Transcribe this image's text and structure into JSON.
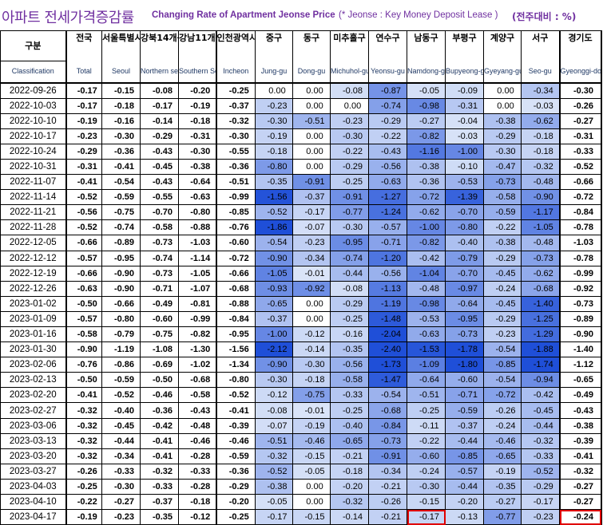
{
  "title": {
    "korean": "아파트 전세가격증감률",
    "english": "Changing Rate of Apartment Jeonse Price",
    "note": "(* Jeonse : Key Money Deposit Lease )",
    "unit": "(전주대비 : %)"
  },
  "columns": [
    {
      "ko": "구분",
      "en": "Classification"
    },
    {
      "ko": "전국",
      "en": "Total"
    },
    {
      "ko": "서울특별시",
      "en": "Seoul"
    },
    {
      "ko": "강북14개구",
      "en": "Northern seoul"
    },
    {
      "ko": "강남11개구",
      "en": "Southern Seoul"
    },
    {
      "ko": "인천광역시",
      "en": "Incheon"
    },
    {
      "ko": "중구",
      "en": "Jung-gu"
    },
    {
      "ko": "동구",
      "en": "Dong-gu"
    },
    {
      "ko": "미추홀구",
      "en": "Michuhol-gu"
    },
    {
      "ko": "연수구",
      "en": "Yeonsu-gu"
    },
    {
      "ko": "남동구",
      "en": "Namdong-gu"
    },
    {
      "ko": "부평구",
      "en": "Bupyeong-gu"
    },
    {
      "ko": "계양구",
      "en": "Gyeyang-gu"
    },
    {
      "ko": "서구",
      "en": "Seo-gu"
    },
    {
      "ko": "경기도",
      "en": "Gyeonggi-do"
    }
  ],
  "rows": [
    {
      "date": "2022-09-26",
      "v": [
        "-0.17",
        "-0.15",
        "-0.08",
        "-0.20",
        "-0.25",
        "0.00",
        "0.00",
        "-0.08",
        "-0.87",
        "-0.05",
        "-0.09",
        "0.00",
        "-0.34",
        "-0.30"
      ]
    },
    {
      "date": "2022-10-03",
      "v": [
        "-0.17",
        "-0.18",
        "-0.17",
        "-0.19",
        "-0.37",
        "-0.23",
        "0.00",
        "0.00",
        "-0.74",
        "-0.98",
        "-0.31",
        "0.00",
        "-0.03",
        "-0.26"
      ]
    },
    {
      "date": "2022-10-10",
      "v": [
        "-0.19",
        "-0.16",
        "-0.14",
        "-0.18",
        "-0.32",
        "-0.30",
        "-0.51",
        "-0.23",
        "-0.29",
        "-0.27",
        "-0.04",
        "-0.38",
        "-0.62",
        "-0.27"
      ]
    },
    {
      "date": "2022-10-17",
      "v": [
        "-0.23",
        "-0.30",
        "-0.29",
        "-0.31",
        "-0.30",
        "-0.19",
        "0.00",
        "-0.30",
        "-0.22",
        "-0.82",
        "-0.03",
        "-0.29",
        "-0.18",
        "-0.31"
      ]
    },
    {
      "date": "2022-10-24",
      "v": [
        "-0.29",
        "-0.36",
        "-0.43",
        "-0.30",
        "-0.55",
        "-0.18",
        "0.00",
        "-0.22",
        "-0.43",
        "-1.16",
        "-1.00",
        "-0.30",
        "-0.18",
        "-0.33"
      ]
    },
    {
      "date": "2022-10-31",
      "v": [
        "-0.31",
        "-0.41",
        "-0.45",
        "-0.38",
        "-0.36",
        "-0.80",
        "0.00",
        "-0.29",
        "-0.56",
        "-0.38",
        "-0.10",
        "-0.47",
        "-0.32",
        "-0.52"
      ]
    },
    {
      "date": "2022-11-07",
      "v": [
        "-0.41",
        "-0.54",
        "-0.43",
        "-0.64",
        "-0.51",
        "-0.35",
        "-0.91",
        "-0.25",
        "-0.63",
        "-0.36",
        "-0.53",
        "-0.73",
        "-0.48",
        "-0.66"
      ]
    },
    {
      "date": "2022-11-14",
      "v": [
        "-0.52",
        "-0.59",
        "-0.55",
        "-0.63",
        "-0.99",
        "-1.56",
        "-0.37",
        "-0.91",
        "-1.27",
        "-0.72",
        "-1.39",
        "-0.58",
        "-0.90",
        "-0.72"
      ]
    },
    {
      "date": "2022-11-21",
      "v": [
        "-0.56",
        "-0.75",
        "-0.70",
        "-0.80",
        "-0.85",
        "-0.52",
        "-0.17",
        "-0.77",
        "-1.24",
        "-0.62",
        "-0.70",
        "-0.59",
        "-1.17",
        "-0.84"
      ]
    },
    {
      "date": "2022-11-28",
      "v": [
        "-0.52",
        "-0.74",
        "-0.58",
        "-0.88",
        "-0.76",
        "-1.86",
        "-0.07",
        "-0.30",
        "-0.57",
        "-1.00",
        "-0.80",
        "-0.22",
        "-1.05",
        "-0.78"
      ]
    },
    {
      "date": "2022-12-05",
      "v": [
        "-0.66",
        "-0.89",
        "-0.73",
        "-1.03",
        "-0.60",
        "-0.54",
        "-0.23",
        "-0.95",
        "-0.71",
        "-0.82",
        "-0.40",
        "-0.38",
        "-0.48",
        "-1.03"
      ]
    },
    {
      "date": "2022-12-12",
      "v": [
        "-0.57",
        "-0.95",
        "-0.74",
        "-1.14",
        "-0.72",
        "-0.90",
        "-0.34",
        "-0.74",
        "-1.20",
        "-0.42",
        "-0.79",
        "-0.29",
        "-0.73",
        "-0.78"
      ]
    },
    {
      "date": "2022-12-19",
      "v": [
        "-0.66",
        "-0.90",
        "-0.73",
        "-1.05",
        "-0.66",
        "-1.05",
        "-0.01",
        "-0.44",
        "-0.56",
        "-1.04",
        "-0.70",
        "-0.45",
        "-0.62",
        "-0.99"
      ]
    },
    {
      "date": "2022-12-26",
      "v": [
        "-0.63",
        "-0.90",
        "-0.71",
        "-1.07",
        "-0.68",
        "-0.93",
        "-0.92",
        "-0.08",
        "-1.13",
        "-0.48",
        "-0.97",
        "-0.24",
        "-0.68",
        "-0.92"
      ]
    },
    {
      "date": "2023-01-02",
      "v": [
        "-0.50",
        "-0.66",
        "-0.49",
        "-0.81",
        "-0.88",
        "-0.65",
        "0.00",
        "-0.29",
        "-1.19",
        "-0.98",
        "-0.64",
        "-0.45",
        "-1.40",
        "-0.73"
      ]
    },
    {
      "date": "2023-01-09",
      "v": [
        "-0.57",
        "-0.80",
        "-0.60",
        "-0.99",
        "-0.84",
        "-0.37",
        "0.00",
        "-0.25",
        "-1.48",
        "-0.53",
        "-0.95",
        "-0.29",
        "-1.25",
        "-0.89"
      ]
    },
    {
      "date": "2023-01-16",
      "v": [
        "-0.58",
        "-0.79",
        "-0.75",
        "-0.82",
        "-0.95",
        "-1.00",
        "-0.12",
        "-0.16",
        "-2.04",
        "-0.63",
        "-0.73",
        "-0.23",
        "-1.29",
        "-0.90"
      ]
    },
    {
      "date": "2023-01-30",
      "v": [
        "-0.90",
        "-1.19",
        "-1.08",
        "-1.30",
        "-1.56",
        "-2.12",
        "-0.14",
        "-0.35",
        "-2.40",
        "-1.53",
        "-1.78",
        "-0.54",
        "-1.88",
        "-1.40"
      ]
    },
    {
      "date": "2023-02-06",
      "v": [
        "-0.76",
        "-0.86",
        "-0.69",
        "-1.02",
        "-1.34",
        "-0.90",
        "-0.30",
        "-0.56",
        "-1.73",
        "-1.09",
        "-1.80",
        "-0.85",
        "-1.74",
        "-1.12"
      ]
    },
    {
      "date": "2023-02-13",
      "v": [
        "-0.50",
        "-0.59",
        "-0.50",
        "-0.68",
        "-0.80",
        "-0.30",
        "-0.18",
        "-0.58",
        "-1.47",
        "-0.64",
        "-0.60",
        "-0.54",
        "-0.94",
        "-0.65"
      ]
    },
    {
      "date": "2023-02-20",
      "v": [
        "-0.41",
        "-0.52",
        "-0.46",
        "-0.58",
        "-0.52",
        "-0.12",
        "-0.75",
        "-0.33",
        "-0.54",
        "-0.51",
        "-0.71",
        "-0.72",
        "-0.42",
        "-0.49"
      ]
    },
    {
      "date": "2023-02-27",
      "v": [
        "-0.32",
        "-0.40",
        "-0.36",
        "-0.43",
        "-0.41",
        "-0.08",
        "-0.01",
        "-0.25",
        "-0.68",
        "-0.25",
        "-0.59",
        "-0.26",
        "-0.45",
        "-0.43"
      ]
    },
    {
      "date": "2023-03-06",
      "v": [
        "-0.32",
        "-0.45",
        "-0.42",
        "-0.48",
        "-0.39",
        "-0.07",
        "-0.19",
        "-0.40",
        "-0.84",
        "-0.11",
        "-0.37",
        "-0.24",
        "-0.44",
        "-0.38"
      ]
    },
    {
      "date": "2023-03-13",
      "v": [
        "-0.32",
        "-0.44",
        "-0.41",
        "-0.46",
        "-0.46",
        "-0.51",
        "-0.46",
        "-0.65",
        "-0.73",
        "-0.22",
        "-0.44",
        "-0.46",
        "-0.32",
        "-0.39"
      ]
    },
    {
      "date": "2023-03-20",
      "v": [
        "-0.32",
        "-0.34",
        "-0.41",
        "-0.28",
        "-0.59",
        "-0.32",
        "-0.15",
        "-0.21",
        "-0.91",
        "-0.60",
        "-0.85",
        "-0.65",
        "-0.33",
        "-0.41"
      ]
    },
    {
      "date": "2023-03-27",
      "v": [
        "-0.26",
        "-0.33",
        "-0.32",
        "-0.33",
        "-0.36",
        "-0.52",
        "-0.05",
        "-0.18",
        "-0.34",
        "-0.24",
        "-0.57",
        "-0.19",
        "-0.52",
        "-0.32"
      ]
    },
    {
      "date": "2023-04-03",
      "v": [
        "-0.25",
        "-0.30",
        "-0.33",
        "-0.28",
        "-0.29",
        "-0.38",
        "0.00",
        "-0.20",
        "-0.21",
        "-0.30",
        "-0.44",
        "-0.35",
        "-0.29",
        "-0.27"
      ]
    },
    {
      "date": "2023-04-10",
      "v": [
        "-0.22",
        "-0.27",
        "-0.37",
        "-0.18",
        "-0.20",
        "-0.05",
        "0.00",
        "-0.32",
        "-0.26",
        "-0.15",
        "-0.20",
        "-0.27",
        "-0.17",
        "-0.27"
      ]
    },
    {
      "date": "2023-04-17",
      "v": [
        "-0.19",
        "-0.23",
        "-0.35",
        "-0.12",
        "-0.25",
        "-0.17",
        "-0.15",
        "-0.14",
        "-0.21",
        "-0.17",
        "-0.13",
        "-0.77",
        "-0.23",
        "-0.24"
      ]
    }
  ],
  "highlighted_cells": [
    {
      "row": 28,
      "col": 9
    },
    {
      "row": 28,
      "col": 13
    }
  ],
  "colors": {
    "title": "#7030a0",
    "scale_light": "#dbe5f8",
    "scale_dark": "#1f4fd8",
    "highlight_border": "#e00000"
  }
}
